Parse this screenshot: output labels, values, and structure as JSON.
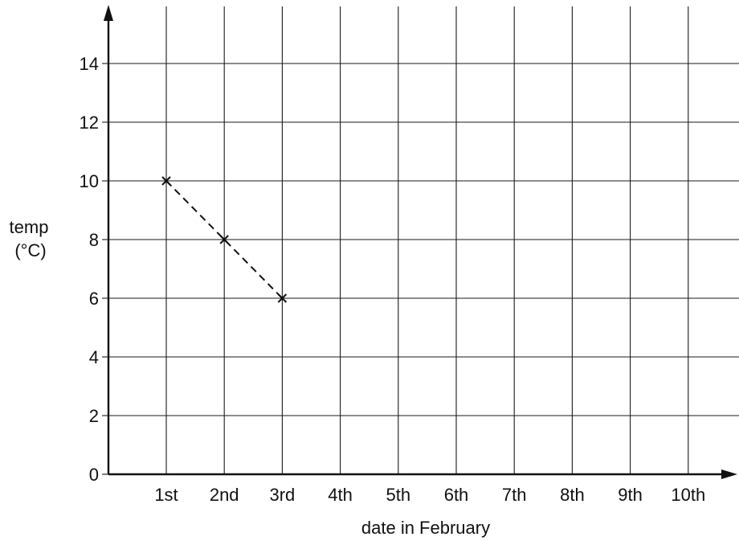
{
  "chart_data": {
    "type": "line",
    "title": "",
    "xlabel": "date in February",
    "ylabel_lines": [
      "temp",
      "(°C)"
    ],
    "categories": [
      "1st",
      "2nd",
      "3rd",
      "4th",
      "5th",
      "6th",
      "7th",
      "8th",
      "9th",
      "10th"
    ],
    "y_ticks": [
      "0",
      "2",
      "4",
      "6",
      "8",
      "10",
      "12",
      "14"
    ],
    "ylim": [
      0,
      15
    ],
    "grid": true,
    "legend": "none",
    "series": [
      {
        "x": [
          "1st",
          "2nd",
          "3rd"
        ],
        "values": [
          10,
          8,
          6
        ],
        "line_style": "dashed",
        "marker": "x"
      }
    ]
  }
}
